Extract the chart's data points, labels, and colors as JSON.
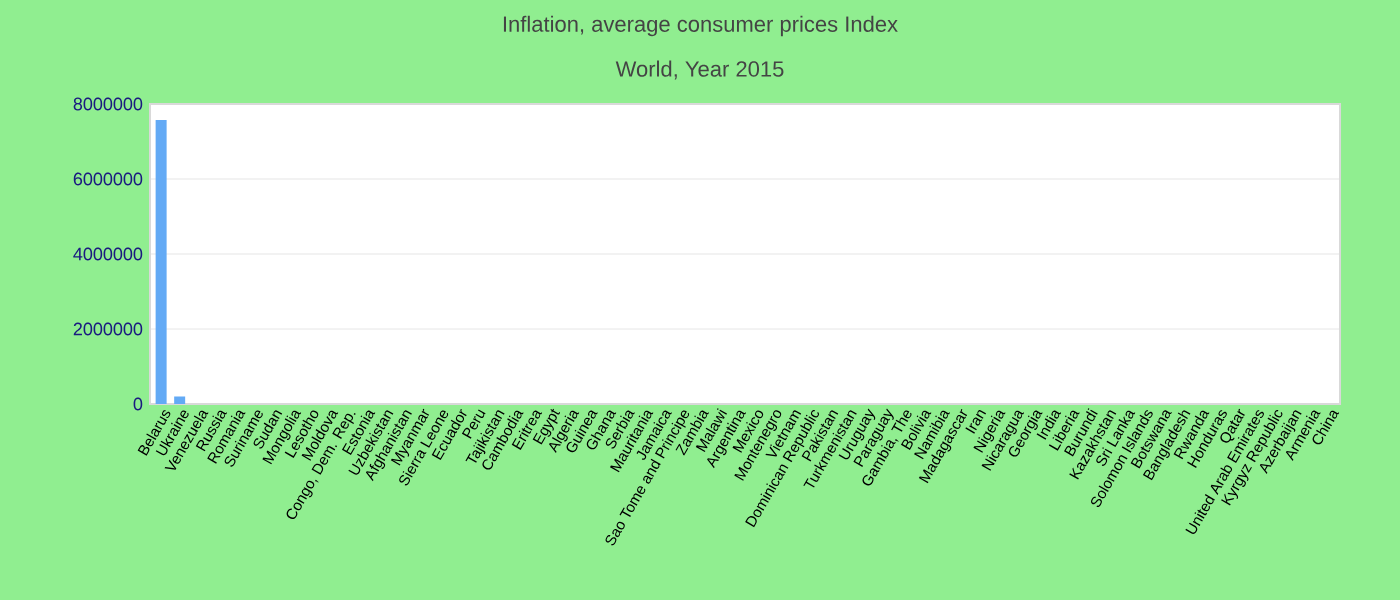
{
  "chart_data": {
    "type": "bar",
    "title": "Inflation, average consumer prices  Index",
    "subtitle": "World, Year 2015",
    "categories": [
      "Belarus",
      "Ukraine",
      "Venezuela",
      "Russia",
      "Romania",
      "Suriname",
      "Sudan",
      "Mongolia",
      "Lesotho",
      "Moldova",
      "Congo, Dem. Rep.",
      "Estonia",
      "Uzbekistan",
      "Afghanistan",
      "Myanmar",
      "Sierra Leone",
      "Ecuador",
      "Peru",
      "Tajikistan",
      "Cambodia",
      "Eritrea",
      "Egypt",
      "Algeria",
      "Guinea",
      "Ghana",
      "Serbia",
      "Mauritania",
      "Jamaica",
      "Sao Tome and Principe",
      "Zambia",
      "Malawi",
      "Argentina",
      "Mexico",
      "Montenegro",
      "Vietnam",
      "Dominican Republic",
      "Pakistan",
      "Turkmenistan",
      "Uruguay",
      "Paraguay",
      "Gambia, The",
      "Bolivia",
      "Namibia",
      "Madagascar",
      "Iran",
      "Nigeria",
      "Nicaragua",
      "Georgia",
      "India",
      "Liberia",
      "Burundi",
      "Kazakhstan",
      "Sri Lanka",
      "Solomon Islands",
      "Botswana",
      "Bangladesh",
      "Rwanda",
      "Honduras",
      "Qatar",
      "United Arab Emirates",
      "Kyrgyz Republic",
      "Azerbaijan",
      "Armenia",
      "China"
    ],
    "values": [
      7570000,
      200000,
      0,
      0,
      0,
      0,
      0,
      0,
      0,
      0,
      0,
      0,
      0,
      0,
      0,
      0,
      0,
      0,
      0,
      0,
      0,
      0,
      0,
      0,
      0,
      0,
      0,
      0,
      0,
      0,
      0,
      0,
      0,
      0,
      0,
      0,
      0,
      0,
      0,
      0,
      0,
      0,
      0,
      0,
      0,
      0,
      0,
      0,
      0,
      0,
      0,
      0,
      0,
      0,
      0,
      0,
      0,
      0,
      0,
      0,
      0,
      0,
      0,
      0
    ],
    "color": "#63aaf5",
    "ylim": [
      0,
      8000000
    ],
    "yticks": [
      0,
      2000000,
      4000000,
      6000000,
      8000000
    ],
    "grid": "y"
  }
}
